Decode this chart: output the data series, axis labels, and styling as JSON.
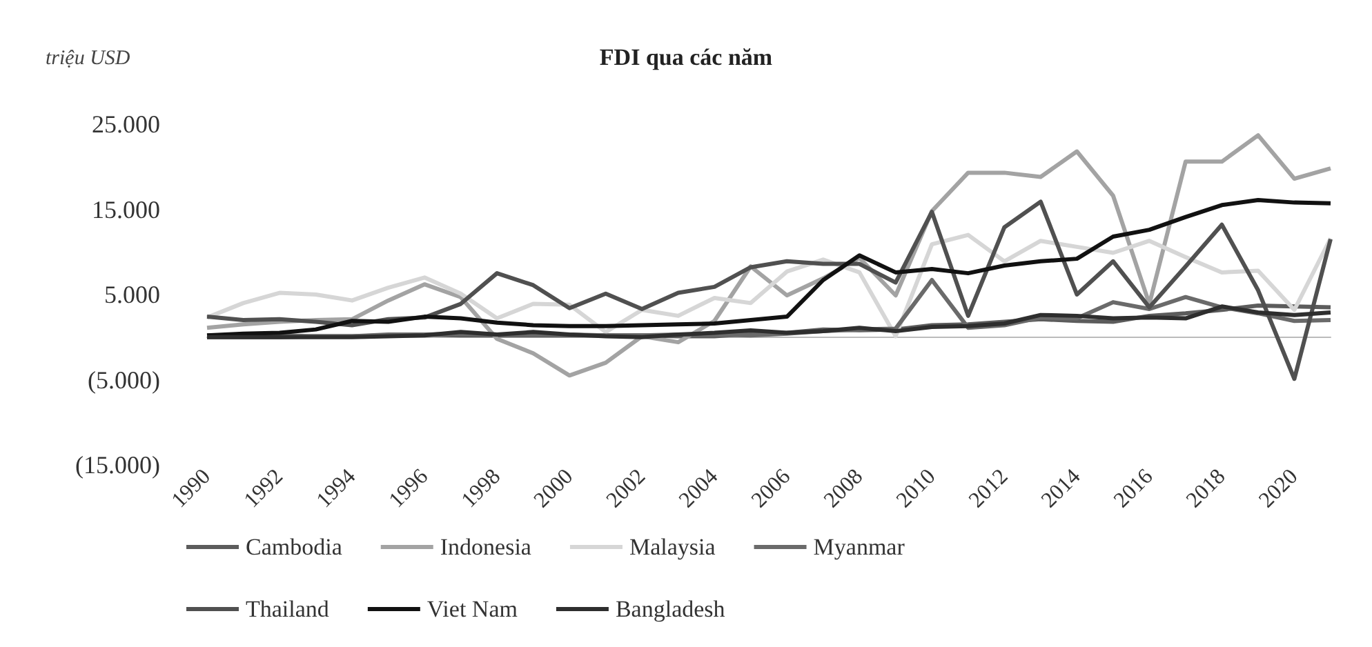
{
  "chart_data": {
    "type": "line",
    "title": "FDI qua các năm",
    "ylabel": "triệu USD",
    "categories": [
      "1990",
      null,
      "1992",
      null,
      "1994",
      null,
      "1996",
      null,
      "1998",
      null,
      "2000",
      null,
      "2002",
      null,
      "2004",
      null,
      "2006",
      null,
      "2008",
      null,
      "2010",
      null,
      "2012",
      null,
      "2014",
      null,
      "2016",
      null,
      "2018",
      null,
      "2020",
      null
    ],
    "ylim": [
      -15000,
      25000
    ],
    "yticks": [
      {
        "value": -15000,
        "label": "(15.000)"
      },
      {
        "value": -5000,
        "label": "(5.000)"
      },
      {
        "value": 5000,
        "label": "5.000"
      },
      {
        "value": 15000,
        "label": "15.000"
      },
      {
        "value": 25000,
        "label": "25.000"
      }
    ],
    "grid": false,
    "legend": "bottom",
    "marker": "none",
    "line_style": "solid",
    "series": [
      {
        "name": "Cambodia",
        "color": "#5c5c5c",
        "values": [
          0,
          0,
          0,
          100,
          100,
          200,
          300,
          200,
          200,
          200,
          200,
          200,
          200,
          100,
          100,
          400,
          500,
          900,
          800,
          900,
          1400,
          1500,
          1800,
          2100,
          1900,
          1800,
          2500,
          2800,
          3200,
          3700,
          3600,
          3500
        ]
      },
      {
        "name": "Indonesia",
        "color": "#a3a3a3",
        "values": [
          1100,
          1500,
          1800,
          2000,
          2100,
          4300,
          6200,
          4700,
          -200,
          -1900,
          -4500,
          -3000,
          100,
          -600,
          1900,
          8300,
          4900,
          6900,
          9300,
          4900,
          14800,
          19300,
          19300,
          18800,
          21800,
          16600,
          3900,
          20600,
          20600,
          23700,
          18600,
          19800
        ]
      },
      {
        "name": "Malaysia",
        "color": "#d6d6d6",
        "values": [
          2300,
          4000,
          5200,
          5000,
          4300,
          5800,
          7000,
          5100,
          2200,
          3900,
          3800,
          600,
          3200,
          2500,
          4600,
          4000,
          7700,
          9100,
          7600,
          100,
          10900,
          12000,
          8900,
          11300,
          10600,
          9900,
          11300,
          9400,
          7600,
          7800,
          3200,
          11600
        ]
      },
      {
        "name": "Myanmar",
        "color": "#6a6a6a",
        "values": [
          200,
          200,
          200,
          100,
          100,
          300,
          300,
          400,
          300,
          300,
          300,
          200,
          200,
          300,
          300,
          200,
          400,
          700,
          900,
          1000,
          6700,
          1100,
          1400,
          2300,
          2200,
          4100,
          3300,
          4700,
          3500,
          2800,
          1900,
          2000
        ]
      },
      {
        "name": "Thailand",
        "color": "#505050",
        "values": [
          2400,
          2000,
          2100,
          1800,
          1400,
          2100,
          2300,
          3900,
          7500,
          6100,
          3400,
          5100,
          3300,
          5200,
          5900,
          8200,
          8900,
          8600,
          8600,
          6400,
          14700,
          2500,
          12900,
          15900,
          5000,
          8900,
          3500,
          8300,
          13200,
          5500,
          -4900,
          11500
        ]
      },
      {
        "name": "Viet Nam",
        "color": "#111111",
        "values": [
          200,
          400,
          500,
          900,
          1900,
          1800,
          2400,
          2200,
          1700,
          1400,
          1300,
          1300,
          1400,
          1500,
          1600,
          2000,
          2400,
          6700,
          9600,
          7600,
          8000,
          7500,
          8400,
          8900,
          9200,
          11800,
          12600,
          14100,
          15500,
          16100,
          15800,
          15700
        ]
      },
      {
        "name": "Bangladesh",
        "color": "#2e2e2e",
        "values": [
          0,
          0,
          0,
          0,
          0,
          100,
          200,
          600,
          300,
          600,
          300,
          100,
          0,
          300,
          500,
          800,
          500,
          700,
          1100,
          700,
          1200,
          1300,
          1600,
          2600,
          2500,
          2200,
          2300,
          2200,
          3600,
          2900,
          2600,
          2900
        ]
      }
    ]
  }
}
